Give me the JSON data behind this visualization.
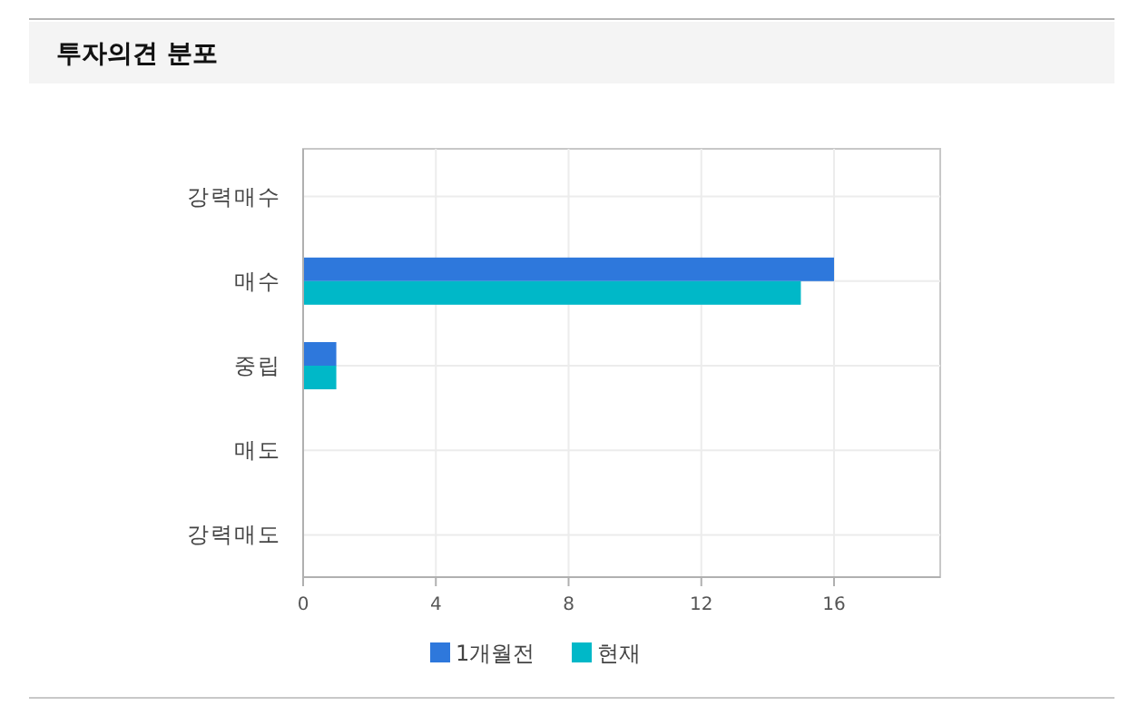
{
  "chart_data": {
    "type": "bar",
    "orientation": "horizontal",
    "title": "투자의견 분포",
    "categories": [
      "강력매수",
      "매수",
      "중립",
      "매도",
      "강력매도"
    ],
    "series": [
      {
        "name": "1개월전",
        "color": "#2e78dc",
        "values": [
          0,
          16,
          1,
          0,
          0
        ]
      },
      {
        "name": "현재",
        "color": "#00b8c8",
        "values": [
          0,
          15,
          1,
          0,
          0
        ]
      }
    ],
    "xlim": [
      0,
      19.2
    ],
    "xticks": [
      0,
      4,
      8,
      12,
      16
    ],
    "grid": true,
    "legend": "bottom"
  }
}
